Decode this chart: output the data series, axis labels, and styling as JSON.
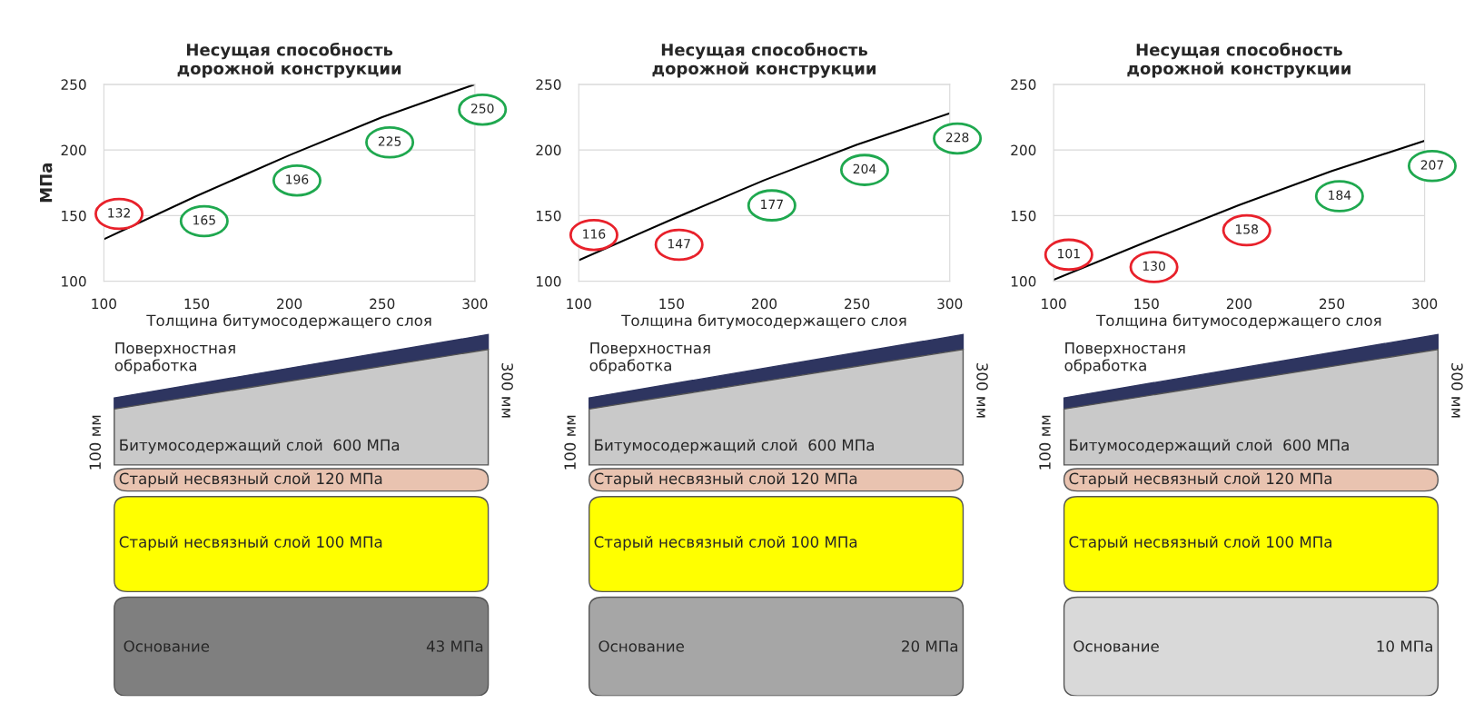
{
  "chart_data": [
    {
      "type": "line",
      "title": "Несущая способность\nдорожной конструкции",
      "xlabel": "Толщина битумосодержащего слоя",
      "ylabel": "МПа",
      "x": [
        100,
        150,
        200,
        250,
        300
      ],
      "series": [
        {
          "color": "#000000",
          "values": [
            132,
            165,
            196,
            225,
            250
          ]
        }
      ],
      "colors": [
        "#e8212b",
        "#1fa84f",
        "#1fa84f",
        "#1fa84f",
        "#1fa84f"
      ],
      "xlim": [
        100,
        300
      ],
      "xticks": [
        100,
        150,
        200,
        250,
        300
      ],
      "ylim": [
        100,
        250
      ],
      "yticks": [
        100,
        150,
        200,
        250
      ],
      "grid": "y",
      "data_labels": true
    },
    {
      "type": "line",
      "title": "Несущая способность\nдорожной конструкции",
      "xlabel": "Толщина битумосодержащего слоя",
      "x": [
        100,
        150,
        200,
        250,
        300
      ],
      "series": [
        {
          "color": "#000000",
          "values": [
            116,
            147,
            177,
            204,
            228
          ]
        }
      ],
      "colors": [
        "#e8212b",
        "#e8212b",
        "#1fa84f",
        "#1fa84f",
        "#1fa84f"
      ],
      "xlim": [
        100,
        300
      ],
      "xticks": [
        100,
        150,
        200,
        250,
        300
      ],
      "ylim": [
        100,
        250
      ],
      "yticks": [
        100,
        150,
        200,
        250
      ],
      "grid": "y",
      "data_labels": true
    },
    {
      "type": "line",
      "title": "Несущая способность\nдорожной конструкции",
      "xlabel": "Толщина битумосодержащего слоя",
      "x": [
        100,
        150,
        200,
        250,
        300
      ],
      "series": [
        {
          "color": "#000000",
          "values": [
            101,
            130,
            158,
            184,
            207
          ]
        }
      ],
      "colors": [
        "#e8212b",
        "#e8212b",
        "#e8212b",
        "#1fa84f",
        "#1fa84f"
      ],
      "xlim": [
        100,
        300
      ],
      "xticks": [
        100,
        150,
        200,
        250,
        300
      ],
      "ylim": [
        100,
        250
      ],
      "yticks": [
        100,
        150,
        200,
        250
      ],
      "grid": "y",
      "data_labels": true
    },
    {
      "type": "other",
      "annotations": [
        "Поверхностная\nобработка",
        "100 мм",
        "300 мм",
        "Битумосодержащий слой  600 МПа",
        "Старый несвязный слой 120 МПа",
        "Старый несвязный слой 100 МПа",
        "Основание",
        "43 МПа"
      ],
      "colors": [
        "#2e3560",
        "#c9c9c9",
        "#e9c3b0",
        "#ffff00",
        "#7f7f7f"
      ]
    },
    {
      "type": "other",
      "annotations": [
        "Поверхностная\nобработка",
        "100 мм",
        "300 мм",
        "Битумосодержащий слой  600 МПа",
        "Старый несвязный слой 120 МПа",
        "Старый несвязный слой 100 МПа",
        "Основание",
        "20 МПа"
      ],
      "colors": [
        "#2e3560",
        "#c9c9c9",
        "#e9c3b0",
        "#ffff00",
        "#a6a6a6"
      ]
    },
    {
      "type": "other",
      "annotations": [
        "Поверхностаня\nобработка",
        "100 мм",
        "300 мм",
        "Битумосодержащий слой  600 МПа",
        "Старый несвязный слой 120 МПа",
        "Старый несвязный слой 100 МПа",
        "Основание",
        "10 МПа"
      ],
      "colors": [
        "#2e3560",
        "#c9c9c9",
        "#e9c3b0",
        "#ffff00",
        "#d9d9d9"
      ]
    }
  ]
}
